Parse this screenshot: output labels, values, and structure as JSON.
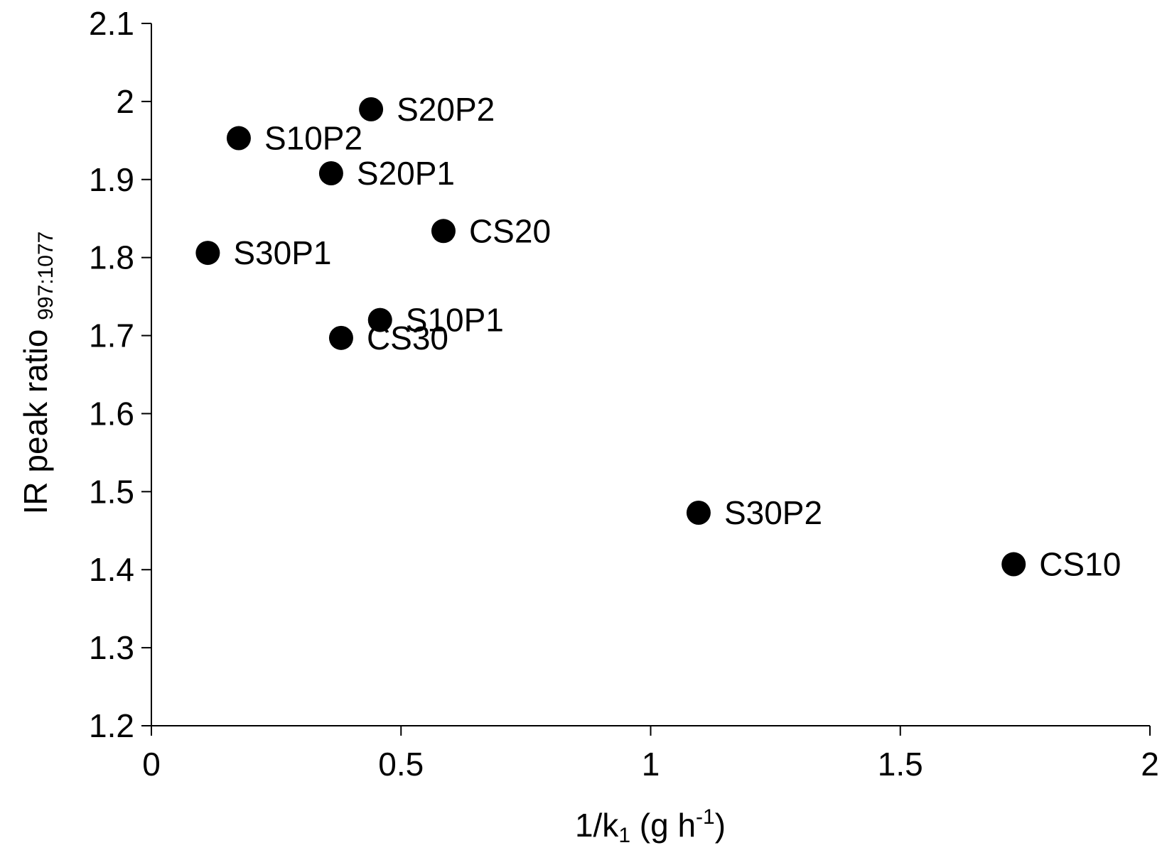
{
  "chart_data": {
    "type": "scatter",
    "xlabel": {
      "main": "1/k",
      "sub": "1",
      "rest": " (g h",
      "sup": "-1",
      "close": ")"
    },
    "ylabel": {
      "main": "IR peak ratio ",
      "sub": "997:1077"
    },
    "xlim": [
      0,
      2
    ],
    "ylim": [
      1.2,
      2.1
    ],
    "xticks": [
      "0",
      "0.5",
      "1",
      "1.5",
      "2"
    ],
    "yticks": [
      "1.2",
      "1.3",
      "1.4",
      "1.5",
      "1.6",
      "1.7",
      "1.8",
      "1.9",
      "2",
      "2.1"
    ],
    "grid": false,
    "marker_color": "#000000",
    "points": [
      {
        "label": "S20P2",
        "x": 0.44,
        "y": 1.99
      },
      {
        "label": "S10P2",
        "x": 0.175,
        "y": 1.953
      },
      {
        "label": "S20P1",
        "x": 0.36,
        "y": 1.908
      },
      {
        "label": "CS20",
        "x": 0.585,
        "y": 1.834
      },
      {
        "label": "S30P1",
        "x": 0.113,
        "y": 1.806
      },
      {
        "label": "S10P1",
        "x": 0.458,
        "y": 1.72
      },
      {
        "label": "CS30",
        "x": 0.38,
        "y": 1.697
      },
      {
        "label": "S30P2",
        "x": 1.096,
        "y": 1.473
      },
      {
        "label": "CS10",
        "x": 1.727,
        "y": 1.407
      }
    ]
  }
}
